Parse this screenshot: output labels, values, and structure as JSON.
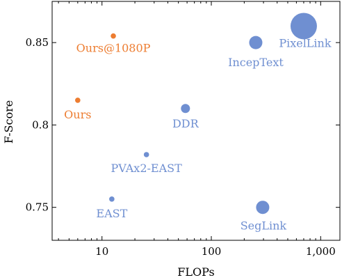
{
  "chart_data": {
    "type": "scatter",
    "title": "",
    "xlabel": "FLOPs",
    "ylabel": "F-Score",
    "xscale": "log",
    "xlim": [
      3.5,
      1500
    ],
    "ylim": [
      0.73,
      0.875
    ],
    "grid": false,
    "xticks": [
      {
        "value": 10,
        "label": "10"
      },
      {
        "value": 100,
        "label": "100"
      },
      {
        "value": 1000,
        "label": "1,000"
      }
    ],
    "yticks": [
      {
        "value": 0.75,
        "label": "0.75"
      },
      {
        "value": 0.8,
        "label": "0.8"
      },
      {
        "value": 0.85,
        "label": "0.85"
      }
    ],
    "colors": {
      "ours": "#ed7d31",
      "others": "#6f8fd1"
    },
    "points": [
      {
        "name": "Ours@1080P",
        "x": 12.7,
        "y": 0.854,
        "size": 1,
        "group": "ours"
      },
      {
        "name": "Ours",
        "x": 6.0,
        "y": 0.815,
        "size": 1,
        "group": "ours"
      },
      {
        "name": "PixelLink",
        "x": 700,
        "y": 0.86,
        "size": 7,
        "group": "others"
      },
      {
        "name": "IncepText",
        "x": 255,
        "y": 0.85,
        "size": 3,
        "group": "others"
      },
      {
        "name": "DDR",
        "x": 58,
        "y": 0.81,
        "size": 2,
        "group": "others"
      },
      {
        "name": "PVAx2-EAST",
        "x": 25.5,
        "y": 0.782,
        "size": 1,
        "group": "others"
      },
      {
        "name": "EAST",
        "x": 12.3,
        "y": 0.755,
        "size": 1,
        "group": "others"
      },
      {
        "name": "SegLink",
        "x": 295,
        "y": 0.75,
        "size": 3,
        "group": "others"
      }
    ]
  }
}
